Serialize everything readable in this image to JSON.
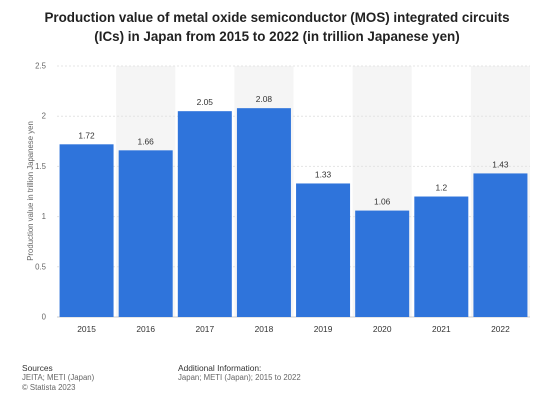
{
  "chart_data": {
    "type": "bar",
    "title": "Production value of metal oxide semiconductor (MOS) integrated circuits (ICs) in Japan from 2015 to 2022 (in trillion Japanese yen)",
    "ylabel": "Production value in trillion Japanese yen",
    "xlabel": "",
    "categories": [
      "2015",
      "2016",
      "2017",
      "2018",
      "2019",
      "2020",
      "2021",
      "2022"
    ],
    "values": [
      1.72,
      1.66,
      2.05,
      2.08,
      1.33,
      1.06,
      1.2,
      1.43
    ],
    "value_labels": [
      "1.72",
      "1.66",
      "2.05",
      "2.08",
      "1.33",
      "1.06",
      "1.2",
      "1.43"
    ],
    "ylim": [
      0,
      2.5
    ],
    "yticks": [
      "0",
      "0.5",
      "1",
      "1.5",
      "2",
      "2.5"
    ],
    "grid": true,
    "bar_color": "#2f74db",
    "band_color": "#f5f5f5"
  },
  "footer": {
    "sources_heading": "Sources",
    "sources_lines": [
      "JEITA; METI (Japan)",
      "© Statista 2023"
    ],
    "info_heading": "Additional Information:",
    "info_lines": [
      "Japan; METI (Japan); 2015 to 2022"
    ]
  }
}
